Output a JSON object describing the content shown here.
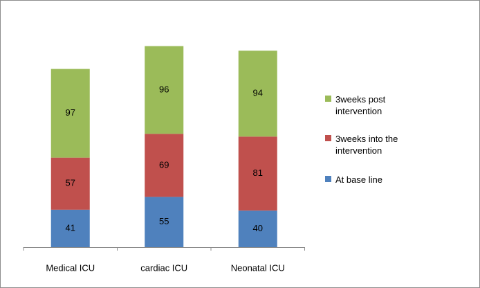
{
  "chart_data": {
    "type": "bar",
    "stacked": true,
    "categories": [
      "Medical ICU",
      "cardiac ICU",
      "Neonatal ICU"
    ],
    "series": [
      {
        "name": "At base line",
        "color": "#4f81bd",
        "values": [
          41,
          55,
          40
        ]
      },
      {
        "name": "3weeks into the intervention",
        "color": "#c0504d",
        "values": [
          57,
          69,
          81
        ]
      },
      {
        "name": "3weeks post intervention",
        "color": "#9bbb59",
        "values": [
          97,
          96,
          94
        ]
      }
    ]
  }
}
